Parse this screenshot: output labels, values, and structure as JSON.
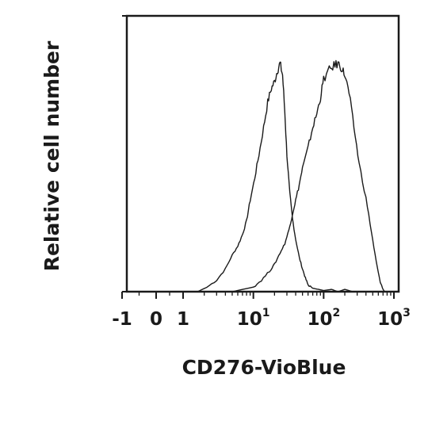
{
  "chart_data": {
    "type": "line",
    "title": "",
    "xlabel": "CD276-VioBlue",
    "ylabel": "Relative cell number",
    "x_scale": "biexponential",
    "xlim": [
      -1,
      1000
    ],
    "ylim": [
      0,
      1
    ],
    "grid": false,
    "legend": "none",
    "y_ticks_labeled": false,
    "x_ticks": [
      {
        "value": -1,
        "label": "-1",
        "exp": ""
      },
      {
        "value": 0,
        "label": "0",
        "exp": ""
      },
      {
        "value": 1,
        "label": "1",
        "exp": ""
      },
      {
        "value": 10,
        "label": "10",
        "exp": "1"
      },
      {
        "value": 100,
        "label": "10",
        "exp": "2"
      },
      {
        "value": 1000,
        "label": "10",
        "exp": "3"
      }
    ],
    "series": [
      {
        "color": "#1a1a1a",
        "x": [
          1.6,
          2.2,
          3.0,
          4.0,
          5.0,
          6.0,
          7.0,
          8.0,
          9.0,
          10.5,
          12,
          14,
          16,
          18,
          20,
          22,
          24,
          26,
          28,
          30,
          33,
          36,
          40,
          45,
          50,
          55,
          60,
          70,
          85,
          100,
          130,
          160,
          200,
          260,
          300
        ],
        "y": [
          0.0,
          0.02,
          0.05,
          0.1,
          0.16,
          0.2,
          0.25,
          0.31,
          0.4,
          0.5,
          0.6,
          0.72,
          0.83,
          0.89,
          0.92,
          0.97,
          1.0,
          0.95,
          0.79,
          0.6,
          0.43,
          0.32,
          0.23,
          0.15,
          0.1,
          0.06,
          0.03,
          0.015,
          0.01,
          0.005,
          0.01,
          0.0,
          0.01,
          0.0,
          0.0
        ]
      },
      {
        "color": "#1a1a1a",
        "x": [
          5,
          10,
          13,
          17,
          20,
          24,
          28,
          32,
          36,
          40,
          45,
          50,
          60,
          70,
          80,
          90,
          100,
          120,
          140,
          160,
          180,
          200,
          230,
          270,
          320,
          400,
          480,
          560,
          640,
          700,
          740
        ],
        "y": [
          0.0,
          0.02,
          0.05,
          0.09,
          0.12,
          0.17,
          0.21,
          0.27,
          0.34,
          0.4,
          0.47,
          0.54,
          0.63,
          0.72,
          0.78,
          0.85,
          0.93,
          0.97,
          0.99,
          1.0,
          0.98,
          0.95,
          0.87,
          0.72,
          0.56,
          0.41,
          0.26,
          0.13,
          0.04,
          0.01,
          0.0
        ]
      }
    ]
  }
}
